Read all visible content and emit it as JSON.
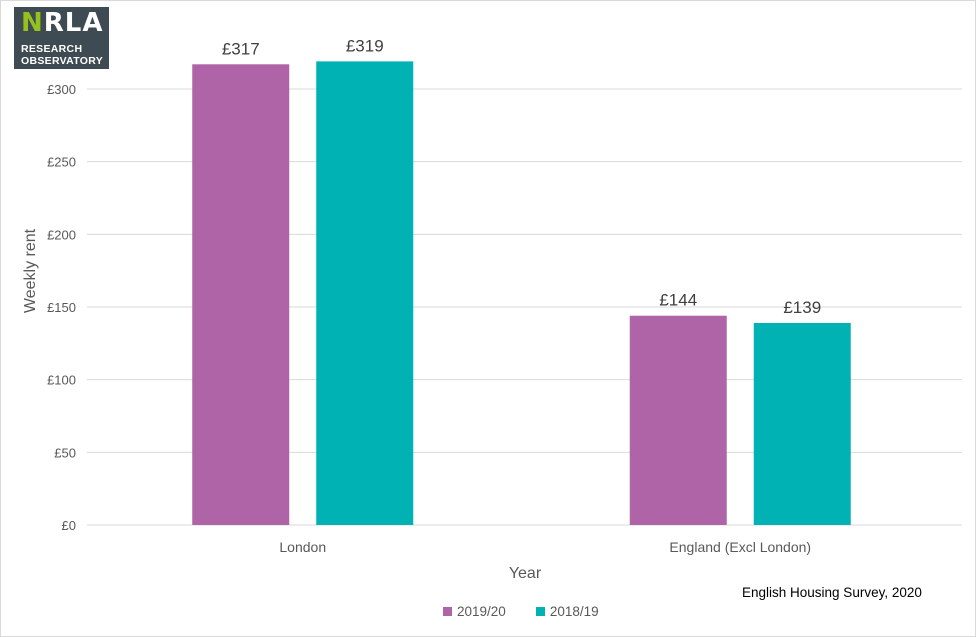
{
  "logo": {
    "brand_main": "NRLA",
    "line1": "RESEARCH",
    "line2": "OBSERVATORY"
  },
  "source": "English Housing Survey, 2020",
  "colors": {
    "series1": "#b064a8",
    "series2": "#00b2b4",
    "grid": "#d9d9d9"
  },
  "chart_data": {
    "type": "bar",
    "categories": [
      "London",
      "England (Excl London)"
    ],
    "series": [
      {
        "name": "2019/20",
        "values": [
          317,
          144
        ],
        "labels": [
          "£317",
          "£144"
        ]
      },
      {
        "name": "2018/19",
        "values": [
          319,
          139
        ],
        "labels": [
          "£319",
          "£139"
        ]
      }
    ],
    "xlabel": "Year",
    "ylabel": "Weekly rent",
    "ylim": [
      0,
      300
    ],
    "yticks": [
      0,
      50,
      100,
      150,
      200,
      250,
      300
    ],
    "ytick_labels": [
      "£0",
      "£50",
      "£100",
      "£150",
      "£200",
      "£250",
      "£300"
    ],
    "grid": true,
    "legend": "bottom"
  }
}
